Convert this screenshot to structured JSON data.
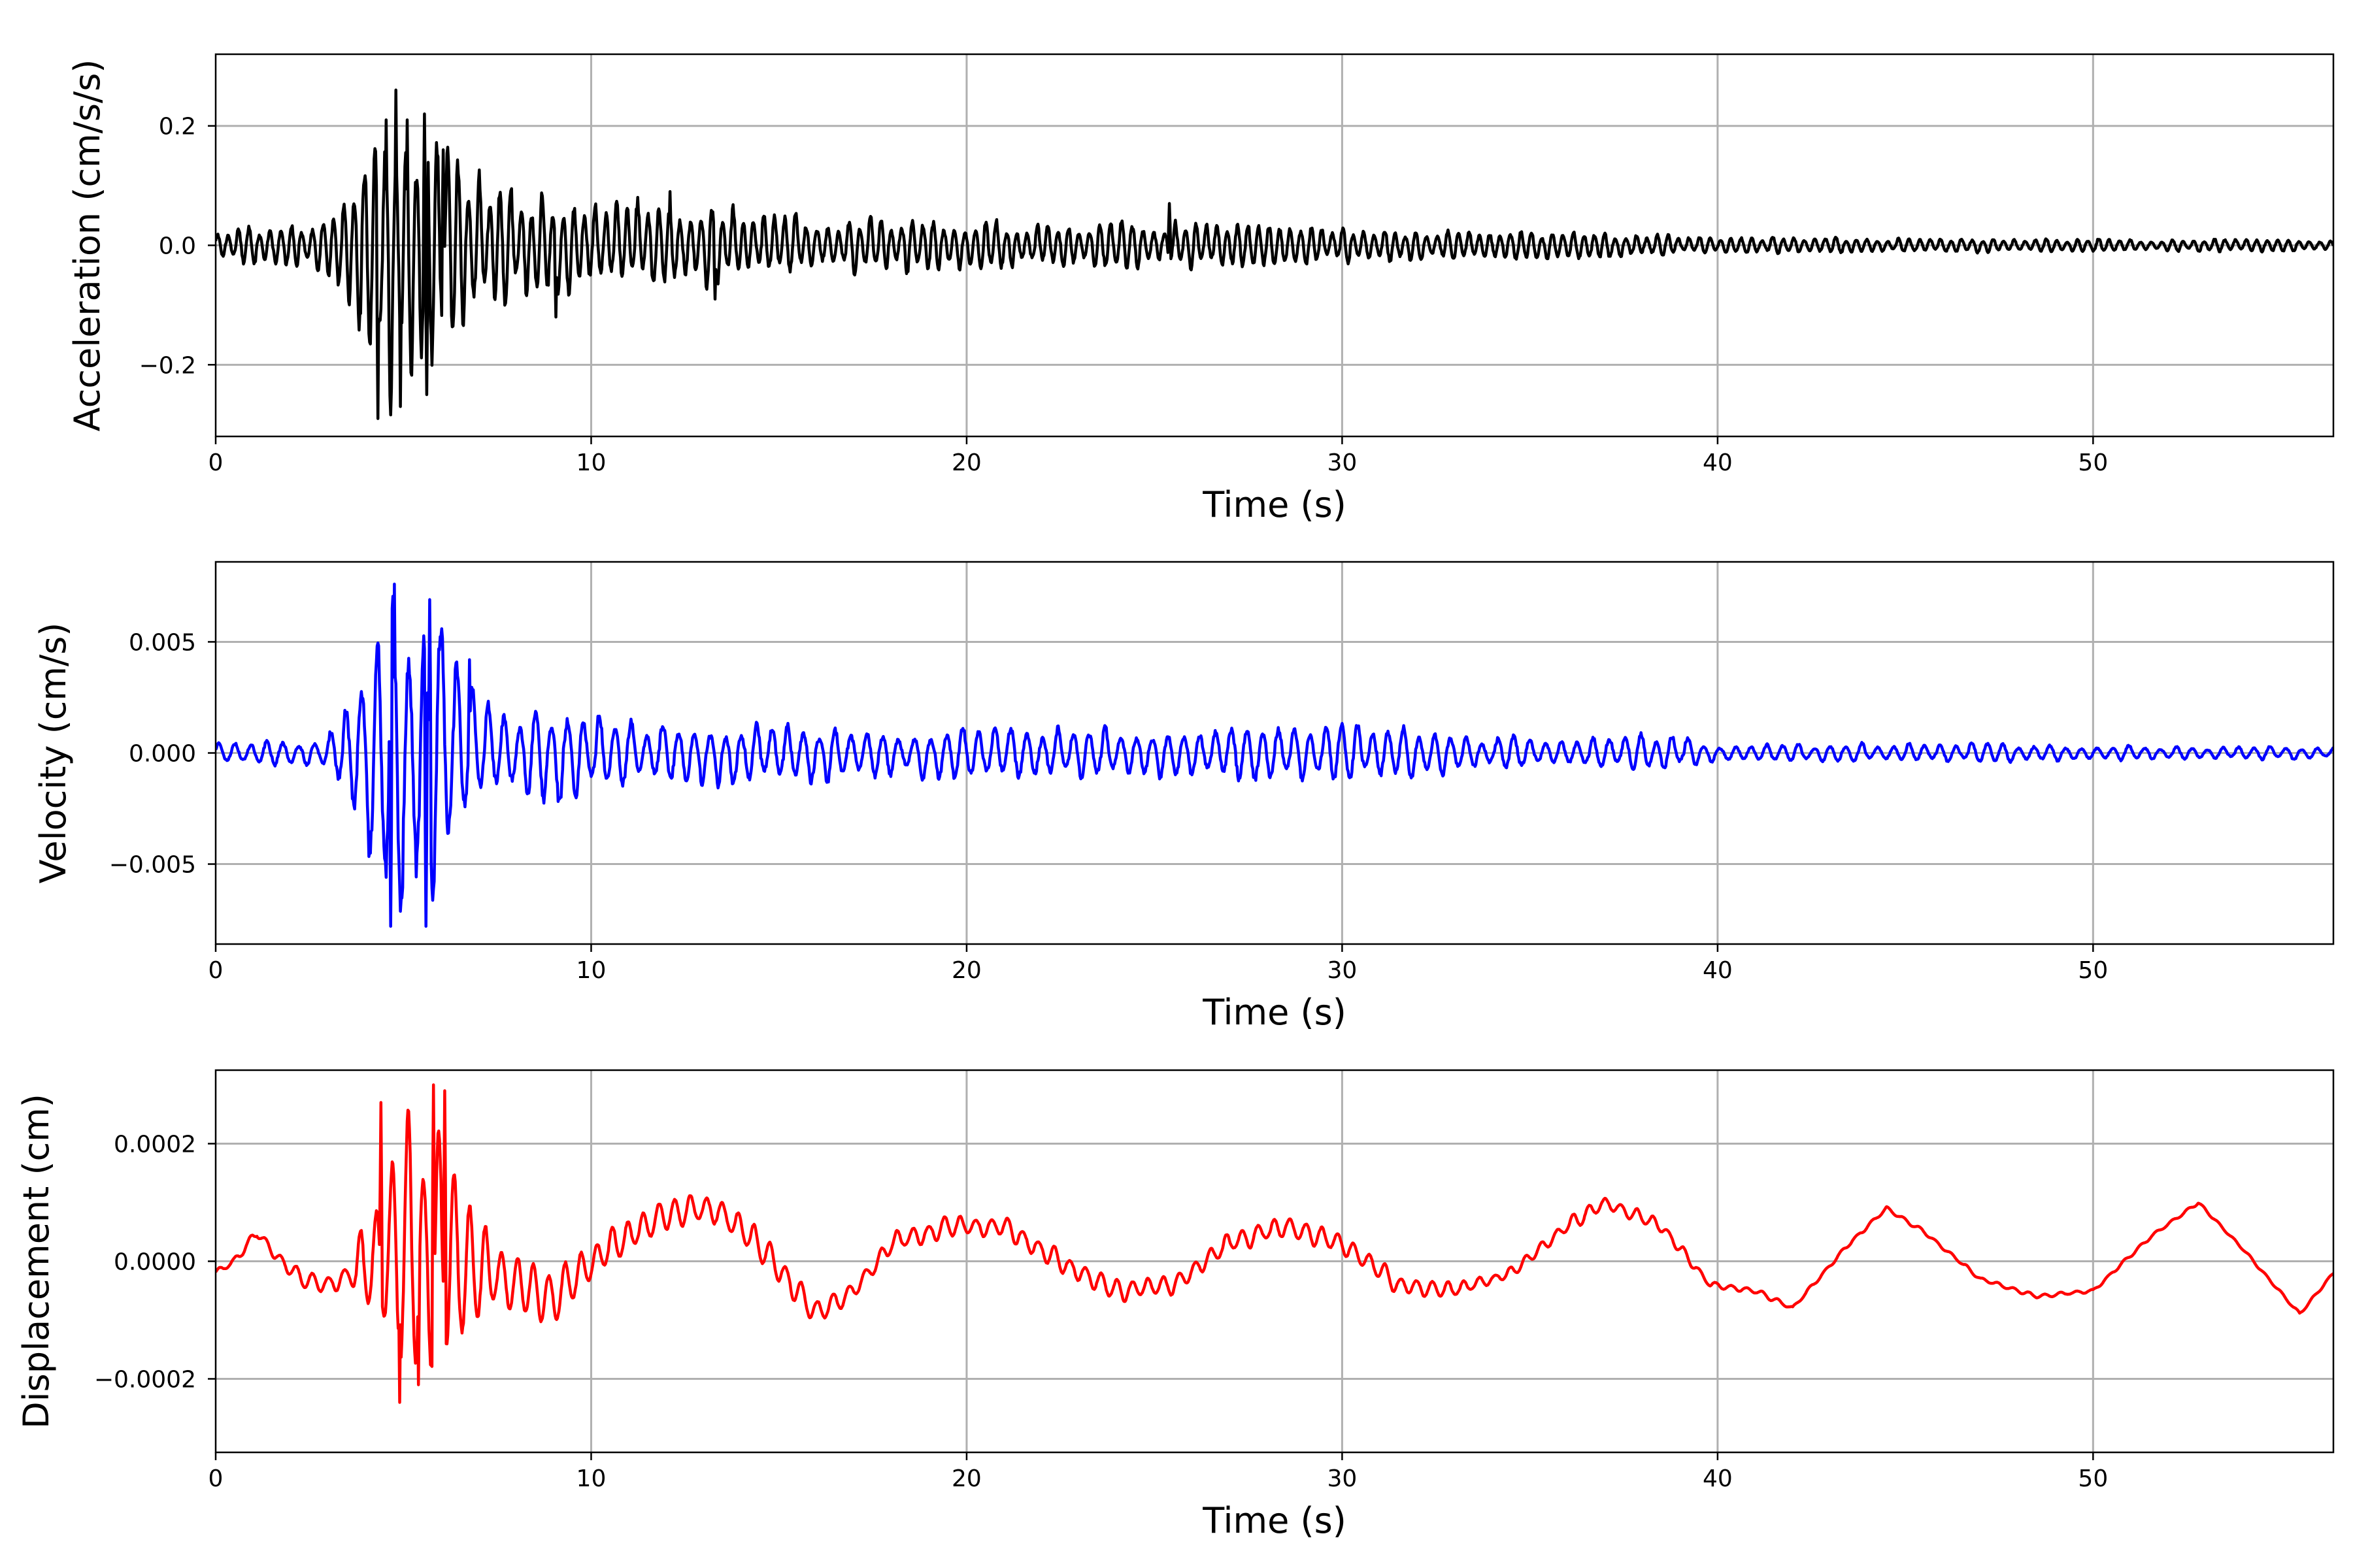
{
  "chart_data": [
    {
      "type": "line",
      "name": "acceleration",
      "xlabel": "Time (s)",
      "ylabel": "Acceleration (cm/s/s)",
      "xlim": [
        0,
        56.4
      ],
      "ylim": [
        -0.32,
        0.32
      ],
      "xticks": [
        0,
        10,
        20,
        30,
        40,
        50
      ],
      "xtick_labels": [
        "0",
        "10",
        "20",
        "30",
        "40",
        "50"
      ],
      "yticks": [
        -0.2,
        0.0,
        0.2
      ],
      "ytick_labels": [
        "−0.2",
        "0.0",
        "0.2"
      ],
      "grid": true,
      "color": "#000000",
      "dominant_period_s": 0.28,
      "envelope": [
        [
          0,
          0.03
        ],
        [
          2.5,
          0.04
        ],
        [
          3.5,
          0.09
        ],
        [
          4.3,
          0.28
        ],
        [
          4.8,
          0.26
        ],
        [
          5.6,
          0.24
        ],
        [
          6.5,
          0.14
        ],
        [
          7.5,
          0.1
        ],
        [
          9,
          0.1
        ],
        [
          11,
          0.08
        ],
        [
          13.5,
          0.07
        ],
        [
          16,
          0.05
        ],
        [
          18,
          0.05
        ],
        [
          22,
          0.04
        ],
        [
          27,
          0.04
        ],
        [
          30,
          0.03
        ],
        [
          35,
          0.025
        ],
        [
          40,
          0.015
        ],
        [
          45,
          0.013
        ],
        [
          50,
          0.011
        ],
        [
          56.4,
          0.01
        ]
      ],
      "peaks": [
        [
          4.32,
          -0.29
        ],
        [
          4.53,
          0.21
        ],
        [
          4.8,
          0.26
        ],
        [
          4.92,
          -0.27
        ],
        [
          5.1,
          0.21
        ],
        [
          5.55,
          0.22
        ],
        [
          5.62,
          -0.25
        ],
        [
          6.05,
          0.16
        ],
        [
          9.05,
          -0.12
        ],
        [
          12.1,
          0.09
        ],
        [
          13.3,
          -0.09
        ],
        [
          25.4,
          0.07
        ]
      ]
    },
    {
      "type": "line",
      "name": "velocity",
      "xlabel": "Time (s)",
      "ylabel": "Velocity (cm/s)",
      "xlim": [
        0,
        56.4
      ],
      "ylim": [
        -0.0086,
        0.0086
      ],
      "xticks": [
        0,
        10,
        20,
        30,
        40,
        50
      ],
      "xtick_labels": [
        "0",
        "10",
        "20",
        "30",
        "40",
        "50"
      ],
      "yticks": [
        -0.005,
        0.0,
        0.005
      ],
      "ytick_labels": [
        "−0.005",
        "0.000",
        "0.005"
      ],
      "grid": true,
      "color": "#0000ff",
      "dominant_period_s": 0.42,
      "envelope": [
        [
          0,
          0.0005
        ],
        [
          2.8,
          0.0006
        ],
        [
          3.5,
          0.0025
        ],
        [
          4.2,
          0.0055
        ],
        [
          4.7,
          0.0078
        ],
        [
          5.6,
          0.0075
        ],
        [
          6.3,
          0.0045
        ],
        [
          7.5,
          0.0022
        ],
        [
          9.2,
          0.0025
        ],
        [
          11,
          0.0015
        ],
        [
          14,
          0.0015
        ],
        [
          18,
          0.0012
        ],
        [
          21,
          0.0012
        ],
        [
          27,
          0.0012
        ],
        [
          30.8,
          0.0013
        ],
        [
          34,
          0.0008
        ],
        [
          37,
          0.0008
        ],
        [
          38.6,
          0.0009
        ],
        [
          40,
          0.0004
        ],
        [
          42,
          0.0004
        ],
        [
          45,
          0.0005
        ],
        [
          52,
          0.0003
        ],
        [
          56.4,
          0.0003
        ]
      ],
      "peaks": [
        [
          4.75,
          0.0076
        ],
        [
          4.66,
          -0.0078
        ],
        [
          5.6,
          -0.0078
        ],
        [
          5.7,
          0.0069
        ],
        [
          6.75,
          0.0042
        ]
      ]
    },
    {
      "type": "line",
      "name": "displacement",
      "xlabel": "Time (s)",
      "ylabel": "Displacement (cm)",
      "xlim": [
        0,
        56.4
      ],
      "ylim": [
        -0.000325,
        0.000325
      ],
      "xticks": [
        0,
        10,
        20,
        30,
        40,
        50
      ],
      "xtick_labels": [
        "0",
        "10",
        "20",
        "30",
        "40",
        "50"
      ],
      "yticks": [
        -0.0002,
        0.0,
        0.0002
      ],
      "ytick_labels": [
        "−0.0002",
        "0.0000",
        "0.0002"
      ],
      "grid": true,
      "color": "#ff0000",
      "dominant_period_s": 0.42,
      "trend": [
        [
          0,
          -2e-05
        ],
        [
          0.5,
          0
        ],
        [
          1.1,
          5e-05
        ],
        [
          1.6,
          1e-05
        ],
        [
          2.3,
          -3e-05
        ],
        [
          3.0,
          -4e-05
        ],
        [
          3.6,
          -2e-05
        ],
        [
          4.5,
          0
        ],
        [
          6,
          0
        ],
        [
          7.5,
          -3e-05
        ],
        [
          9,
          -6e-05
        ],
        [
          10.5,
          2e-05
        ],
        [
          12,
          8e-05
        ],
        [
          13.3,
          9e-05
        ],
        [
          14.6,
          2e-05
        ],
        [
          16,
          -9e-05
        ],
        [
          17,
          -5e-05
        ],
        [
          18,
          3e-05
        ],
        [
          19.5,
          6e-05
        ],
        [
          21,
          6e-05
        ],
        [
          22.5,
          0
        ],
        [
          24,
          -5e-05
        ],
        [
          25.5,
          -4e-05
        ],
        [
          27,
          3e-05
        ],
        [
          28.5,
          6e-05
        ],
        [
          30,
          3e-05
        ],
        [
          31.5,
          -4e-05
        ],
        [
          33,
          -5e-05
        ],
        [
          34.5,
          -2e-05
        ],
        [
          36,
          6e-05
        ],
        [
          37,
          0.0001
        ],
        [
          38.5,
          6e-05
        ],
        [
          39.8,
          -4e-05
        ],
        [
          41,
          -5e-05
        ],
        [
          42,
          -8e-05
        ],
        [
          43.5,
          3e-05
        ],
        [
          44.5,
          9e-05
        ],
        [
          45.5,
          5e-05
        ],
        [
          47,
          -3e-05
        ],
        [
          48.5,
          -6e-05
        ],
        [
          50,
          -5e-05
        ],
        [
          51.5,
          4e-05
        ],
        [
          52.8,
          0.0001
        ],
        [
          54,
          2e-05
        ],
        [
          55.5,
          -9e-05
        ],
        [
          56.4,
          -2e-05
        ]
      ],
      "ripple_envelope": [
        [
          0,
          5e-06
        ],
        [
          3.5,
          2e-05
        ],
        [
          4.2,
          0.00014
        ],
        [
          4.8,
          0.00026
        ],
        [
          5.8,
          0.00027
        ],
        [
          6.5,
          0.00016
        ],
        [
          7.5,
          5e-05
        ],
        [
          9.5,
          5e-05
        ],
        [
          11,
          3e-05
        ],
        [
          14,
          3e-05
        ],
        [
          17,
          2e-05
        ],
        [
          20,
          2e-05
        ],
        [
          28,
          2e-05
        ],
        [
          30.8,
          2.5e-05
        ],
        [
          34,
          1e-05
        ],
        [
          37,
          1.5e-05
        ],
        [
          38.6,
          1.2e-05
        ],
        [
          40,
          6e-06
        ],
        [
          42,
          4e-06
        ],
        [
          56.4,
          3e-06
        ]
      ],
      "peaks": [
        [
          4.4,
          0.00027
        ],
        [
          4.9,
          -0.00024
        ],
        [
          5.8,
          0.0003
        ],
        [
          6.1,
          0.00029
        ],
        [
          5.4,
          -0.00021
        ]
      ]
    }
  ]
}
